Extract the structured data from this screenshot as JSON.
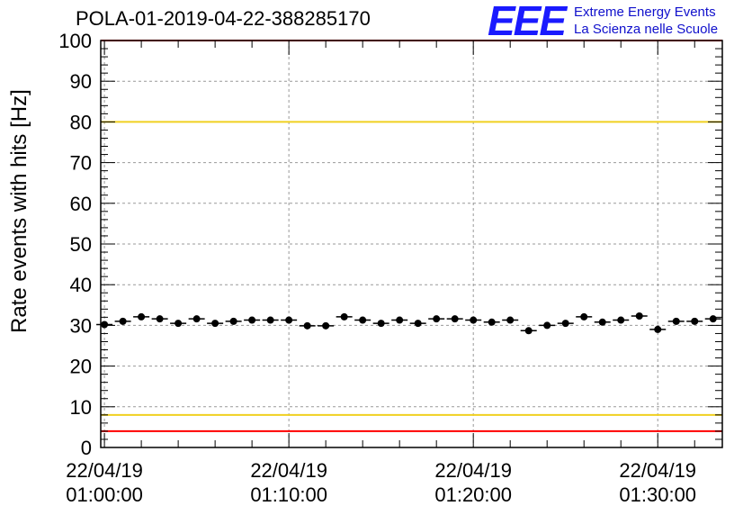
{
  "header": {
    "title": "POLA-01-2019-04-22-388285170",
    "logo_text": "EEE",
    "logo_line1": "Extreme Energy Events",
    "logo_line2": "La Scienza nelle Scuole"
  },
  "chart_data": {
    "type": "scatter",
    "title": "POLA-01-2019-04-22-388285170",
    "xlabel": "",
    "ylabel": "Rate events with hits [Hz]",
    "ylim": [
      0,
      100
    ],
    "xlim_minutes": [
      -0.2,
      33.5
    ],
    "y_ticks": [
      0,
      10,
      20,
      30,
      40,
      50,
      60,
      70,
      80,
      90,
      100
    ],
    "x_ticks": [
      {
        "minute": 0,
        "date": "22/04/19",
        "time": "01:00:00"
      },
      {
        "minute": 10,
        "date": "22/04/19",
        "time": "01:10:00"
      },
      {
        "minute": 20,
        "date": "22/04/19",
        "time": "01:20:00"
      },
      {
        "minute": 30,
        "date": "22/04/19",
        "time": "01:30:00"
      }
    ],
    "grid": true,
    "reference_lines": [
      {
        "y": 100,
        "color": "#ff0000"
      },
      {
        "y": 80,
        "color": "#f0d020"
      },
      {
        "y": 8,
        "color": "#f0d020"
      },
      {
        "y": 4,
        "color": "#ff0000"
      }
    ],
    "series": [
      {
        "color": "#000000",
        "x_minutes": [
          0,
          1,
          2,
          3,
          4,
          5,
          6,
          7,
          8,
          9,
          10,
          11,
          12,
          13,
          14,
          15,
          16,
          17,
          18,
          19,
          20,
          21,
          22,
          23,
          24,
          25,
          26,
          27,
          28,
          29,
          30,
          31,
          32,
          33
        ],
        "values": [
          30.2,
          31.0,
          32.1,
          31.6,
          30.5,
          31.6,
          30.5,
          31.0,
          31.3,
          31.3,
          31.3,
          29.9,
          29.9,
          32.1,
          31.3,
          30.5,
          31.3,
          30.5,
          31.6,
          31.6,
          31.3,
          30.8,
          31.3,
          28.7,
          30.0,
          30.5,
          32.1,
          30.8,
          31.3,
          32.3,
          29.0,
          31.0,
          31.0,
          31.6
        ]
      }
    ]
  }
}
